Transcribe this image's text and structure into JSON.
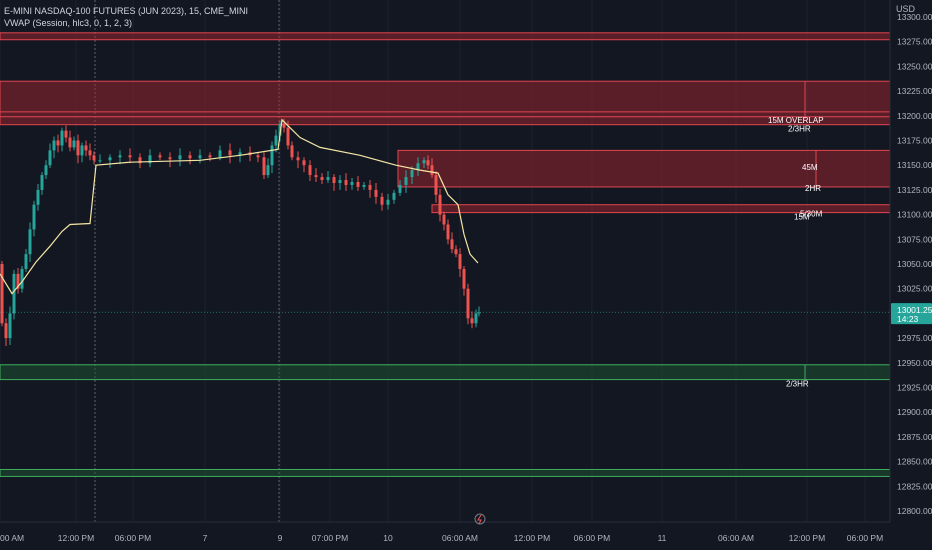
{
  "header": {
    "symbol_line": "E-MINI NASDAQ-100 FUTURES (JUN 2023), 15, CME_MINI",
    "indicator_line": "VWAP (Session, hlc3, 0, 1, 2, 3)",
    "currency": "USD"
  },
  "price_axis": {
    "ticks": [
      "13300.00",
      "13275.00",
      "13250.00",
      "13225.00",
      "13200.00",
      "13175.00",
      "13150.00",
      "13125.00",
      "13100.00",
      "13075.00",
      "13050.00",
      "13025.00",
      "13000.00",
      "12975.00",
      "12950.00",
      "12925.00",
      "12900.00",
      "12875.00",
      "12850.00",
      "12825.00",
      "12800.00"
    ],
    "last_price": "13001.25",
    "countdown": "14:23"
  },
  "time_axis": {
    "labels": [
      "00 AM",
      "12:00 PM",
      "06:00 PM",
      "7",
      "9",
      "07:00 PM",
      "10",
      "06:00 AM",
      "12:00 PM",
      "06:00 PM",
      "11",
      "06:00 AM",
      "12:00 PM",
      "06:00 PM"
    ]
  },
  "colors": {
    "background": "#131722",
    "up": "#26a69a",
    "down": "#ef5350",
    "vwap": "#f5e6a3",
    "supply_zone": "#b22833",
    "demand_zone": "#1e5e32"
  },
  "chart_data": {
    "type": "candlestick",
    "title": "E-MINI NASDAQ-100 FUTURES (JUN 2023), 15, CME_MINI",
    "ylabel": "USD",
    "ylim": [
      12790,
      13310
    ],
    "last_price": 13001.25,
    "annotations": [
      {
        "label": "15M OVERLAP",
        "price": 13196
      },
      {
        "label": "2/3HR",
        "price": 13187
      },
      {
        "label": "45M",
        "price": 13148
      },
      {
        "label": "2HR",
        "price": 13127
      },
      {
        "label": "5/30M",
        "price": 13101
      },
      {
        "label": "15M",
        "price": 13098
      },
      {
        "label": "2/3HR",
        "price": 12929
      }
    ],
    "zones": [
      {
        "kind": "supply",
        "low": 13277,
        "high": 13284
      },
      {
        "kind": "supply",
        "low": 13191,
        "high": 13235
      },
      {
        "kind": "supply",
        "low": 13128,
        "high": 13165
      },
      {
        "kind": "supply",
        "low": 13102,
        "high": 13110
      },
      {
        "kind": "demand",
        "low": 12933,
        "high": 12948
      },
      {
        "kind": "demand",
        "low": 12835,
        "high": 12842
      }
    ],
    "vwap": [
      [
        0,
        13040
      ],
      [
        12,
        13020
      ],
      [
        22,
        13032
      ],
      [
        36,
        13052
      ],
      [
        50,
        13068
      ],
      [
        62,
        13083
      ],
      [
        70,
        13090
      ],
      [
        90,
        13091
      ],
      [
        96,
        13150
      ],
      [
        130,
        13153
      ],
      [
        200,
        13155
      ],
      [
        240,
        13160
      ],
      [
        278,
        13166
      ],
      [
        282,
        13196
      ],
      [
        300,
        13178
      ],
      [
        320,
        13168
      ],
      [
        360,
        13160
      ],
      [
        396,
        13150
      ],
      [
        420,
        13145
      ],
      [
        438,
        13142
      ],
      [
        448,
        13120
      ],
      [
        458,
        13110
      ],
      [
        464,
        13080
      ],
      [
        470,
        13060
      ],
      [
        478,
        13051
      ]
    ]
  }
}
